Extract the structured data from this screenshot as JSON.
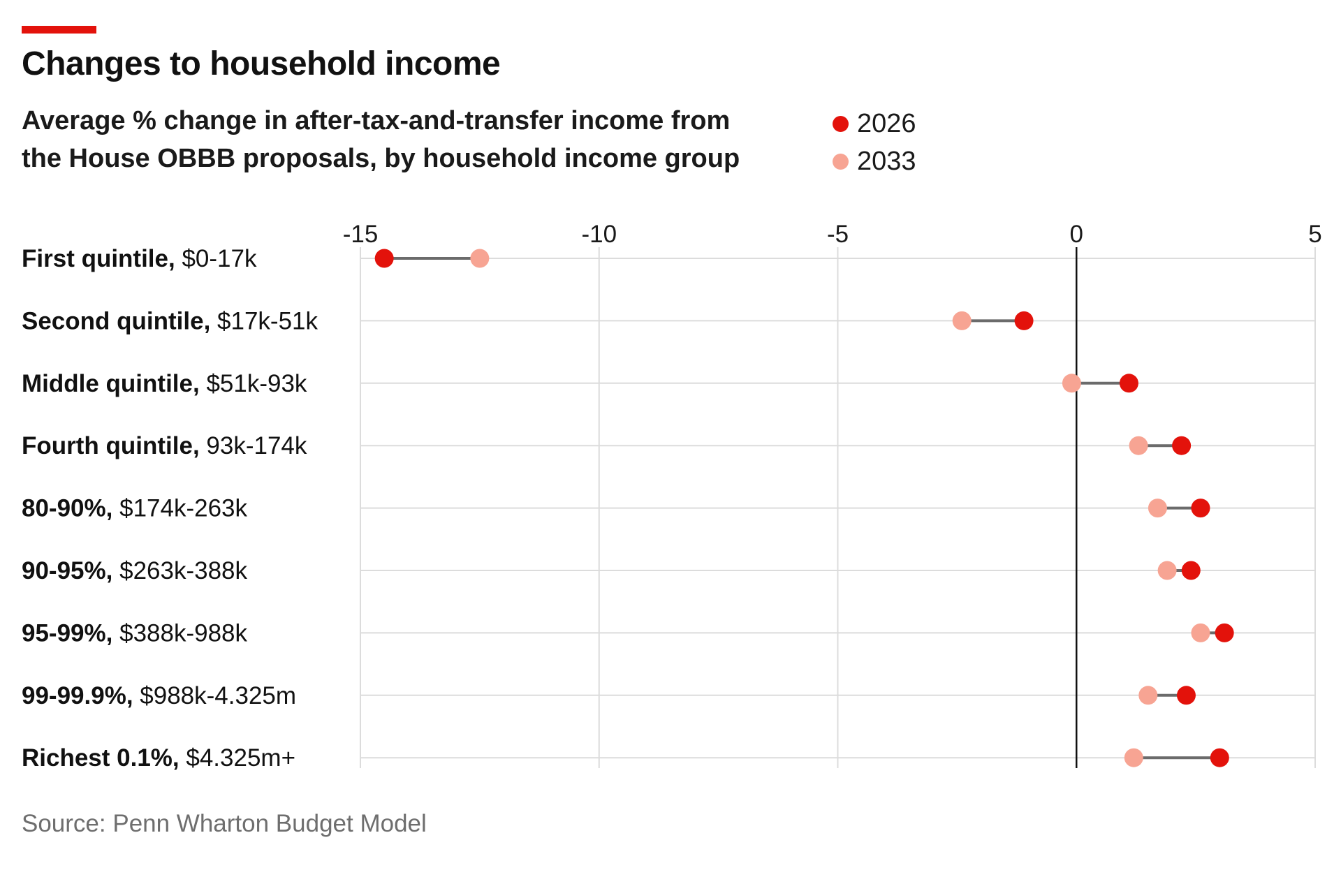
{
  "title": "Changes to household income",
  "subtitle": "Average % change in after-tax-and-transfer income from the House OBBB proposals, by household income group",
  "source": "Source: Penn Wharton Budget Model",
  "colors": {
    "accent": "#e3120b",
    "series_2026": "#e3120b",
    "series_2033": "#f7a493",
    "connector": "#6b6b6b",
    "gridline": "#dcdcdc",
    "zero_line": "#111111"
  },
  "chart_data": {
    "type": "dot-plot",
    "xlim": [
      -15,
      5
    ],
    "x_ticks": [
      -15,
      -10,
      -5,
      0,
      5
    ],
    "x_tick_labels": [
      "-15",
      "-10",
      "-5",
      "0",
      "5"
    ],
    "grid": true,
    "legend_position": "top-right",
    "categories": [
      {
        "bold": "First quintile,",
        "range": " $0-17k"
      },
      {
        "bold": "Second quintile,",
        "range": " $17k-51k"
      },
      {
        "bold": "Middle quintile,",
        "range": " $51k-93k"
      },
      {
        "bold": "Fourth quintile,",
        "range": " 93k-174k"
      },
      {
        "bold": "80-90%,",
        "range": " $174k-263k"
      },
      {
        "bold": "90-95%,",
        "range": " $263k-388k"
      },
      {
        "bold": "95-99%,",
        "range": " $388k-988k"
      },
      {
        "bold": "99-99.9%,",
        "range": " $988k-4.325m"
      },
      {
        "bold": "Richest 0.1%,",
        "range": " $4.325m+"
      }
    ],
    "series": [
      {
        "name": "2026",
        "values": [
          -14.5,
          -1.1,
          1.1,
          2.2,
          2.6,
          2.4,
          3.1,
          2.3,
          3.0
        ]
      },
      {
        "name": "2033",
        "values": [
          -12.5,
          -2.4,
          -0.1,
          1.3,
          1.7,
          1.9,
          2.6,
          1.5,
          1.2
        ]
      }
    ]
  }
}
